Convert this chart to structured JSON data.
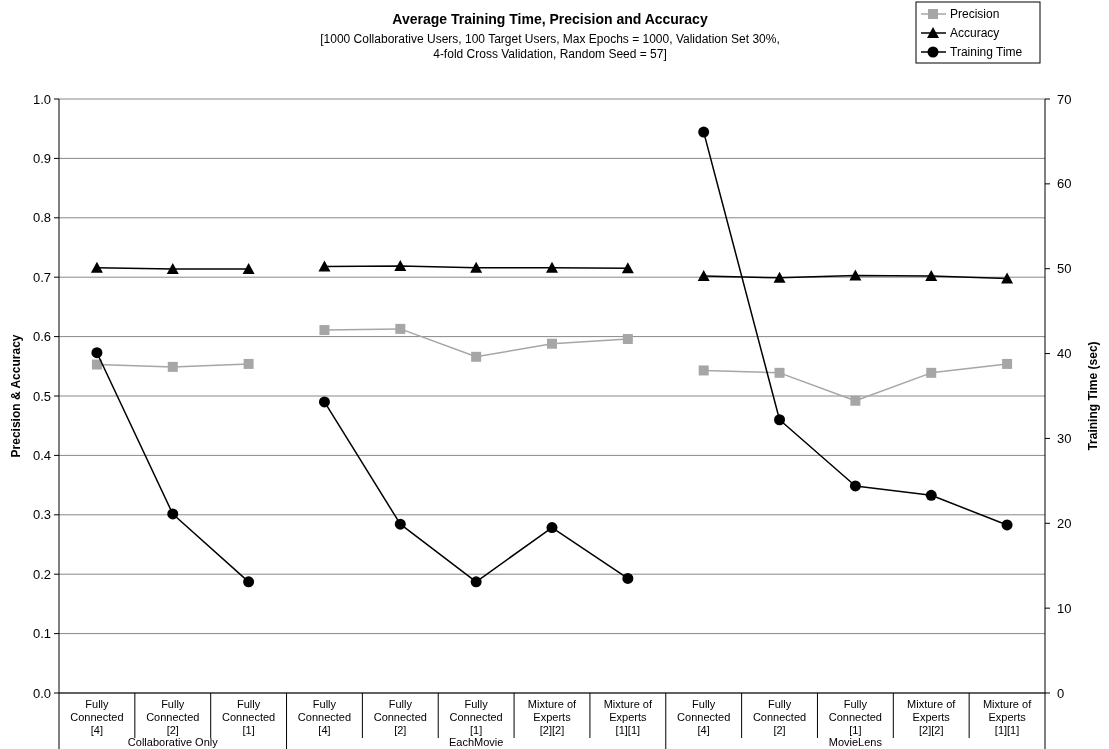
{
  "chart_data": {
    "type": "line",
    "title": "Average Training Time, Precision and Accuracy",
    "subtitle": "[1000 Collaborative Users, 100 Target Users, Max Epochs = 1000, Validation Set 30%, 4-fold Cross Validation, Random Seed = 57]",
    "ylabel": "Precision & Accuracy",
    "y2label": "Training Time (sec)",
    "categories": [
      "Fully Connected [4]",
      "Fully Connected [2]",
      "Fully Connected [1]",
      "Fully Connected [4]",
      "Fully Connected [2]",
      "Fully Connected [1]",
      "Mixture of Experts [2][2]",
      "Mixture of Experts [1][1]",
      "Fully Connected [4]",
      "Fully Connected [2]",
      "Fully Connected [1]",
      "Mixture of Experts [2][2]",
      "Mixture of Experts [1][1]"
    ],
    "annotations": [
      "Collaborative Only",
      "EachMovie",
      "MovieLens"
    ],
    "series": [
      {
        "name": "Precision",
        "color": "#a6a6a6",
        "marker": "square",
        "values": [
          0.553,
          0.549,
          0.554,
          0.611,
          0.613,
          0.566,
          0.588,
          0.596,
          0.543,
          0.539,
          0.492,
          0.539,
          0.554
        ]
      },
      {
        "name": "Accuracy",
        "color": "#000000",
        "marker": "triangle",
        "values": [
          0.716,
          0.714,
          0.714,
          0.718,
          0.719,
          0.716,
          0.716,
          0.715,
          0.702,
          0.699,
          0.703,
          0.702,
          0.698
        ]
      },
      {
        "name": "Training Time",
        "color": "#000000",
        "marker": "circle",
        "axis": "y2",
        "values": [
          40.1,
          21.1,
          13.1,
          34.3,
          19.9,
          13.1,
          19.5,
          13.5,
          66.1,
          32.2,
          24.4,
          23.3,
          19.8
        ]
      }
    ],
    "ylim": [
      0,
      1
    ],
    "yticks": [
      {
        "value": 0,
        "label": "0.0"
      },
      0.1,
      0.2,
      0.3,
      0.4,
      0.5,
      0.6,
      0.7,
      0.8,
      0.9,
      {
        "value": 1,
        "label": "1.0"
      }
    ],
    "y2lim": [
      0,
      70
    ],
    "y2ticks": [
      0,
      10,
      20,
      30,
      40,
      50,
      60,
      70
    ],
    "grid": "y",
    "legend": "top right",
    "line_style": "solid"
  }
}
